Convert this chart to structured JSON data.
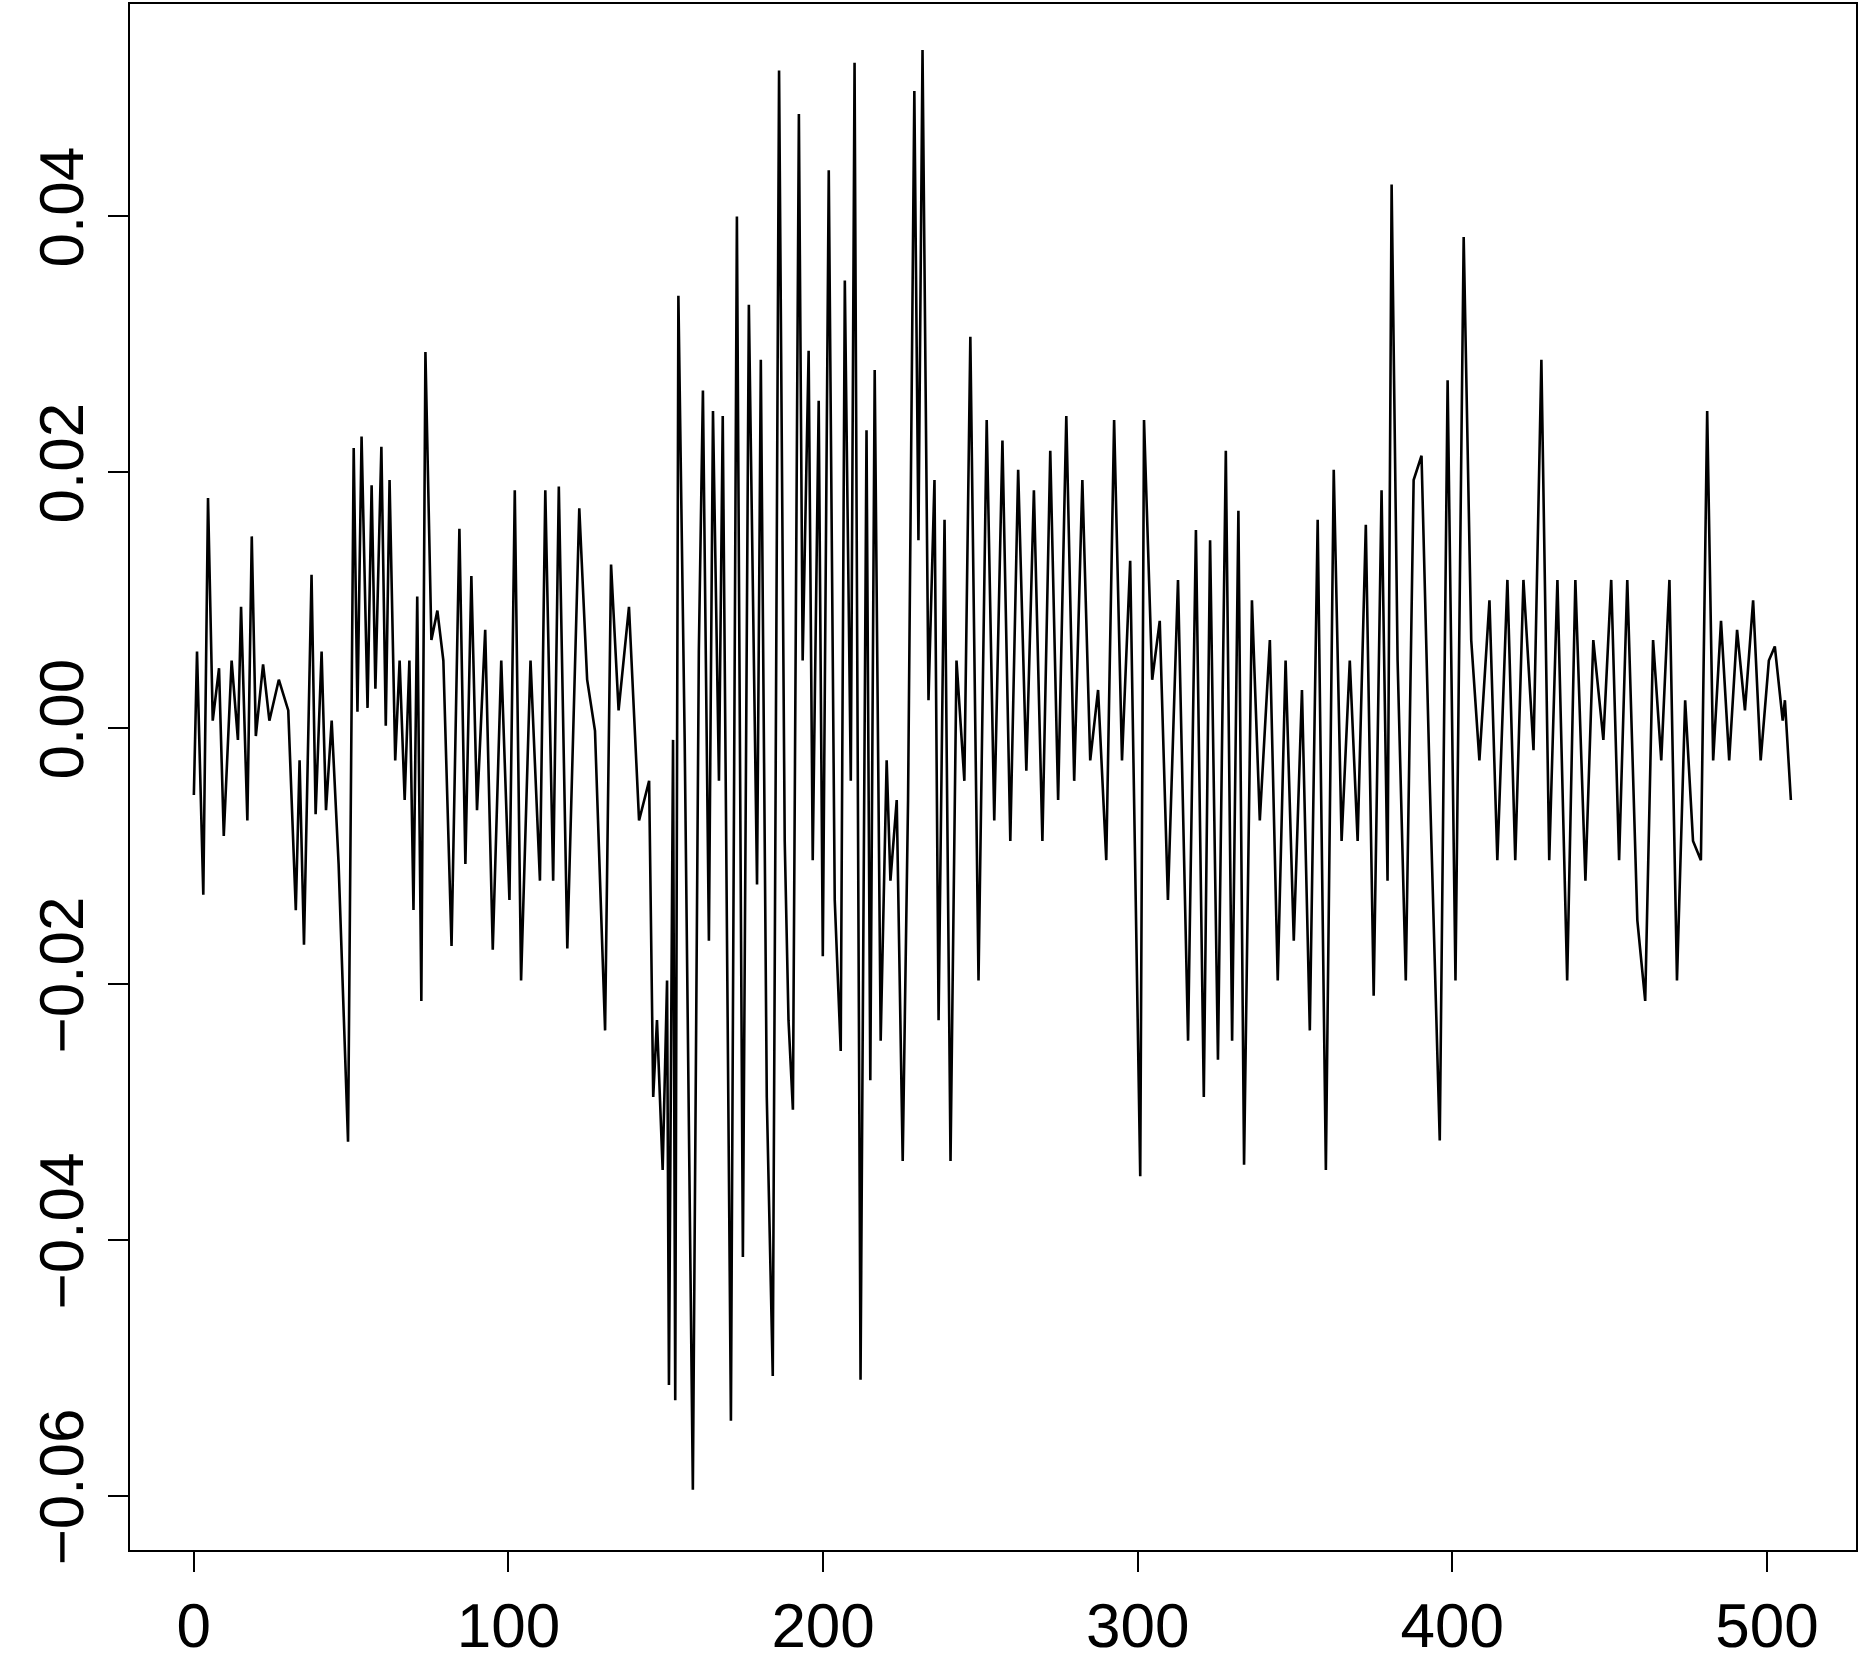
{
  "chart_data": {
    "type": "line",
    "color": "#000000",
    "marker": "none",
    "line_style": "solid",
    "xlim": [
      -20.3,
      528.3
    ],
    "ylim": [
      -0.0642,
      0.0566
    ],
    "xticks": [
      0,
      100,
      200,
      300,
      400,
      500
    ],
    "yticks": [
      -0.06,
      -0.04,
      -0.02,
      {
        "value": 0,
        "label": "0.00"
      },
      0.02,
      0.04
    ],
    "x": [
      0,
      1,
      3,
      4.5,
      6,
      8,
      9.5,
      12,
      14,
      15,
      17,
      18.4,
      19.7,
      22,
      24,
      27,
      30,
      32.4,
      33.6,
      35,
      37.4,
      38.7,
      40.6,
      42,
      43.8,
      46,
      49,
      50.8,
      52,
      53.3,
      55.2,
      56.5,
      57.7,
      59.6,
      61,
      62.2,
      64,
      65.4,
      67,
      68.5,
      69.8,
      71,
      72.3,
      73.6,
      75.5,
      77.4,
      79.3,
      81.9,
      84.4,
      86.3,
      88.2,
      90,
      92.6,
      95,
      97.7,
      100.3,
      102,
      104,
      107,
      110,
      111.7,
      114.2,
      116,
      118.7,
      122.5,
      125,
      127.5,
      130.7,
      132.6,
      135,
      138.3,
      141.5,
      144.7,
      146,
      147.2,
      149,
      150.4,
      151,
      152.3,
      153,
      154,
      156,
      158.6,
      160.5,
      161.8,
      163.7,
      165,
      166.9,
      168.1,
      170.7,
      172.6,
      174.5,
      176.4,
      179,
      180.2,
      182.1,
      184,
      186,
      187.8,
      189,
      190.4,
      192.3,
      193.5,
      195.4,
      196.7,
      198.6,
      199.9,
      201.8,
      203.7,
      205.6,
      206.9,
      208.8,
      210,
      211.9,
      213.8,
      215,
      216.4,
      218.3,
      220.2,
      221.4,
      223.4,
      225.3,
      227,
      229,
      230.3,
      231.6,
      233.5,
      235.4,
      236.7,
      238.6,
      240.5,
      242.4,
      244.9,
      246.8,
      249.4,
      252,
      254.4,
      257,
      259.5,
      262,
      264.6,
      267,
      269.7,
      272.2,
      274.7,
      277.3,
      279.8,
      282.4,
      284.9,
      287.4,
      290,
      292.5,
      295,
      297.6,
      300.8,
      302,
      304.6,
      307,
      309.6,
      312.8,
      316,
      318.5,
      321,
      323,
      325.5,
      328,
      330,
      332,
      333.8,
      336.3,
      338.8,
      342,
      344.5,
      347,
      349.6,
      352.2,
      354.7,
      357.2,
      359.8,
      362.3,
      364.8,
      367.4,
      369.9,
      372.5,
      375,
      377.5,
      379.4,
      380.7,
      382.6,
      385.2,
      387.7,
      390.2,
      392.8,
      396,
      398.5,
      401,
      403.6,
      406,
      408.6,
      411.8,
      414.3,
      417.5,
      420,
      422.6,
      425.8,
      428.3,
      430.8,
      433.4,
      436.5,
      439.1,
      442.3,
      444.8,
      448,
      450.5,
      453,
      455.6,
      458.8,
      461.3,
      463.8,
      466.4,
      469,
      471.4,
      474,
      476.5,
      479,
      481,
      482.9,
      485.4,
      488,
      490.5,
      493,
      495.6,
      498,
      500.6,
      502.5,
      505,
      505.7,
      507.6
    ],
    "values": [
      -0.0052,
      0.006,
      -0.013,
      0.018,
      0.0006,
      0.0047,
      -0.0084,
      0.0053,
      -0.0009,
      0.0095,
      -0.0072,
      0.015,
      -0.0006,
      0.005,
      0.0006,
      0.0038,
      0.0014,
      -0.0142,
      -0.0025,
      -0.0169,
      0.012,
      -0.0067,
      0.006,
      -0.0064,
      0.0006,
      -0.0106,
      -0.0323,
      0.0219,
      0.0013,
      0.0228,
      0.0016,
      0.019,
      0.0031,
      0.022,
      0.0002,
      0.0194,
      -0.0025,
      0.0053,
      -0.0056,
      0.0053,
      -0.0142,
      0.0103,
      -0.0213,
      0.0294,
      0.0069,
      0.0092,
      0.0053,
      -0.017,
      0.0156,
      -0.0106,
      0.0119,
      -0.0064,
      0.0077,
      -0.0173,
      0.0053,
      -0.0134,
      0.0186,
      -0.0197,
      0.0053,
      -0.0119,
      0.0186,
      -0.0119,
      0.0189,
      -0.0172,
      0.0172,
      0.0038,
      -0.0002,
      -0.0236,
      0.0128,
      0.0014,
      0.0095,
      -0.0072,
      -0.0041,
      -0.0288,
      -0.0228,
      -0.0345,
      -0.0197,
      -0.0513,
      -0.0009,
      -0.0525,
      0.0338,
      -0.0009,
      -0.0595,
      0.0061,
      0.0264,
      -0.0166,
      0.0248,
      -0.0041,
      0.0244,
      -0.0541,
      0.04,
      -0.0413,
      0.0331,
      -0.0122,
      0.0288,
      -0.0288,
      -0.0506,
      0.0514,
      -0.0088,
      -0.0228,
      -0.0298,
      0.048,
      0.0053,
      0.0295,
      -0.0103,
      0.0256,
      -0.0178,
      0.0436,
      -0.0134,
      -0.0252,
      0.035,
      -0.0041,
      0.052,
      -0.0509,
      0.0233,
      -0.0275,
      0.028,
      -0.0244,
      -0.0025,
      -0.0119,
      -0.0056,
      -0.0338,
      -0.0056,
      0.0498,
      0.0147,
      0.053,
      0.0022,
      0.0194,
      -0.0228,
      0.0163,
      -0.0338,
      0.0053,
      -0.0041,
      0.0306,
      -0.0197,
      0.0241,
      -0.0072,
      0.0225,
      -0.0088,
      0.0202,
      -0.0033,
      0.0186,
      -0.0088,
      0.0217,
      -0.0056,
      0.0244,
      -0.0041,
      0.0194,
      -0.0025,
      0.003,
      -0.0103,
      0.0241,
      -0.0025,
      0.0131,
      -0.035,
      0.0241,
      0.0038,
      0.0084,
      -0.0134,
      0.0116,
      -0.0244,
      0.0155,
      -0.0288,
      0.0147,
      -0.0259,
      0.0217,
      -0.0244,
      0.017,
      -0.0341,
      0.01,
      -0.0072,
      0.0069,
      -0.0197,
      0.0053,
      -0.0166,
      0.003,
      -0.0236,
      0.0163,
      -0.0345,
      0.0202,
      -0.0088,
      0.0053,
      -0.0088,
      0.0159,
      -0.0209,
      0.0186,
      -0.0119,
      0.0425,
      0.0053,
      -0.0197,
      0.0194,
      0.0213,
      -0.0041,
      -0.0322,
      0.0272,
      -0.0197,
      0.0384,
      0.0069,
      -0.0025,
      0.01,
      -0.0103,
      0.0116,
      -0.0103,
      0.0116,
      -0.0017,
      0.0288,
      -0.0103,
      0.0116,
      -0.0197,
      0.0116,
      -0.0119,
      0.0069,
      -0.0009,
      0.0116,
      -0.0103,
      0.0116,
      -0.015,
      -0.0213,
      0.0069,
      -0.0025,
      0.0116,
      -0.0197,
      0.0022,
      -0.0088,
      -0.0103,
      0.0248,
      -0.0025,
      0.0084,
      -0.0025,
      0.0077,
      0.0014,
      0.01,
      -0.0025,
      0.0053,
      0.0064,
      0.0006,
      0.0022,
      -0.0056
    ]
  }
}
